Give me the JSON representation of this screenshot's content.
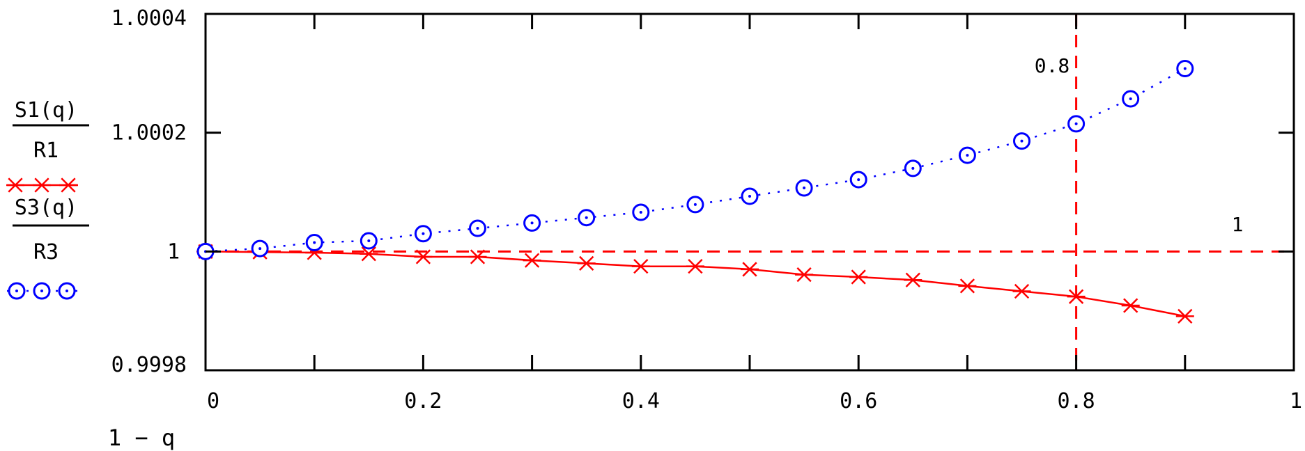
{
  "chart_data": {
    "type": "line",
    "xlabel": "1 − q",
    "xlim": [
      0,
      1
    ],
    "ylim": [
      0.9998,
      1.0004
    ],
    "x_ticks": [
      0,
      0.2,
      0.4,
      0.6,
      0.8,
      1
    ],
    "x_tick_labels": [
      "0",
      "0.2",
      "0.4",
      "0.6",
      "0.8",
      "1"
    ],
    "y_ticks": [
      0.9998,
      1.0002,
      1.0004
    ],
    "y_tick_labels": [
      "0.9998",
      "1.0002",
      "1.0004"
    ],
    "y_extra_tick": {
      "value": 1,
      "label": "1"
    },
    "x_minor_ticks": [
      0.1,
      0.3,
      0.5,
      0.7,
      0.9
    ],
    "y_minor_ticks": [
      1
    ],
    "grid": false,
    "x": [
      0,
      0.05,
      0.1,
      0.15,
      0.2,
      0.25,
      0.3,
      0.35,
      0.4,
      0.45,
      0.5,
      0.55,
      0.6,
      0.65,
      0.7,
      0.75,
      0.8,
      0.85,
      0.9
    ],
    "series": [
      {
        "key": "s1",
        "legend_numerator": "S1(q)",
        "legend_denominator": "R1",
        "color": "#ff0000",
        "marker": "asterisk",
        "line_style": "solid",
        "values": [
          1.0,
          0.999999,
          0.999998,
          0.999996,
          0.999991,
          0.999991,
          0.999985,
          0.99998,
          0.999975,
          0.999975,
          0.99997,
          0.999961,
          0.999957,
          0.999952,
          0.999942,
          0.999933,
          0.999924,
          0.999909,
          0.999891
        ]
      },
      {
        "key": "s3",
        "legend_numerator": "S3(q)",
        "legend_denominator": "R3",
        "color": "#0000ff",
        "marker": "circle",
        "line_style": "dotted",
        "values": [
          1.0,
          1.000005,
          1.000015,
          1.000018,
          1.00003,
          1.000039,
          1.000048,
          1.000057,
          1.000066,
          1.000079,
          1.000093,
          1.000107,
          1.000121,
          1.00014,
          1.000162,
          1.000186,
          1.000215,
          1.000257,
          1.000308
        ]
      }
    ],
    "reference_lines": [
      {
        "orientation": "vertical",
        "value": 0.8,
        "label": "0.8",
        "color": "#ff0000",
        "style": "dashed"
      },
      {
        "orientation": "horizontal",
        "value": 1,
        "label": "1",
        "color": "#ff0000",
        "style": "dashed"
      }
    ]
  },
  "colors": {
    "axis": "#000000",
    "background": "#ffffff"
  }
}
